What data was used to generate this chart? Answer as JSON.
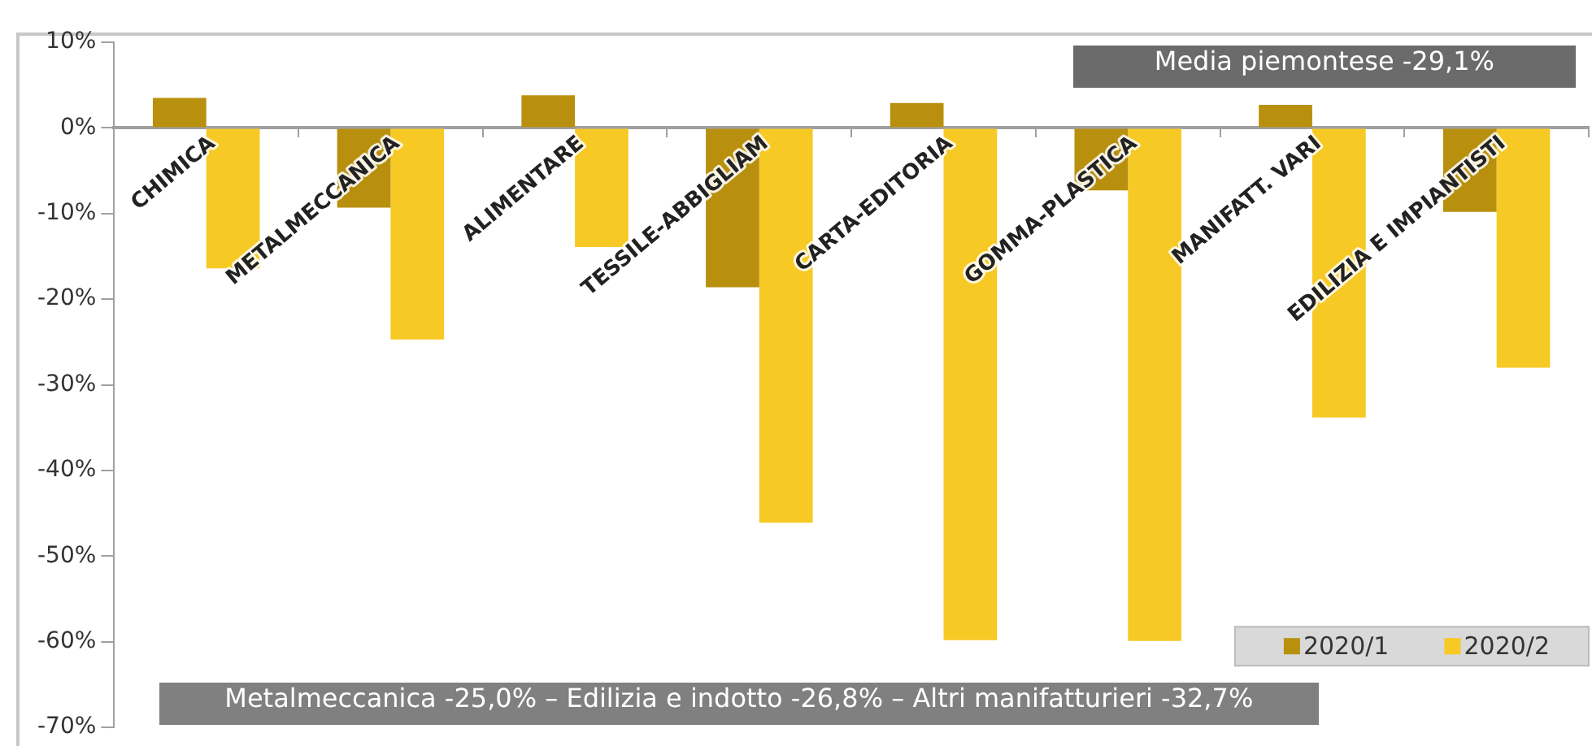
{
  "chart_data": {
    "type": "bar",
    "categories": [
      "CHIMICA",
      "METALMECCANICA",
      "ALIMENTARE",
      "TESSILE-ABBIGLIAM",
      "CARTA-EDITORIA",
      "GOMMA-PLASTICA",
      "MANIFATT. VARI",
      "EDILIZIA E IMPIANTISTI"
    ],
    "series": [
      {
        "name": "2020/1",
        "color": "#b8900e",
        "values": [
          3.5,
          -9.3,
          3.8,
          -18.6,
          2.9,
          -7.3,
          2.7,
          -9.8
        ]
      },
      {
        "name": "2020/2",
        "color": "#f7c925",
        "values": [
          -16.4,
          -24.7,
          -13.9,
          -46.1,
          -59.8,
          -59.9,
          -33.8,
          -28
        ]
      }
    ],
    "ylim": [
      -70,
      10
    ],
    "yticks": [
      {
        "value": 10,
        "label": "10%"
      },
      {
        "value": 0,
        "label": "0%"
      },
      {
        "value": -10,
        "label": "-10%"
      },
      {
        "value": -20,
        "label": "-20%"
      },
      {
        "value": -30,
        "label": "-30%"
      },
      {
        "value": -40,
        "label": "-40%"
      },
      {
        "value": -50,
        "label": "-50%"
      },
      {
        "value": -60,
        "label": "-60%"
      },
      {
        "value": -70,
        "label": "-70%"
      }
    ],
    "grid": false,
    "legend": "bottom right",
    "annotations": [
      "Media piemontese -29,1%",
      "Metalmeccanica -25,0%  –  Edilizia e indotto -26,8%  –  Altri manifatturieri -32,7%"
    ]
  }
}
